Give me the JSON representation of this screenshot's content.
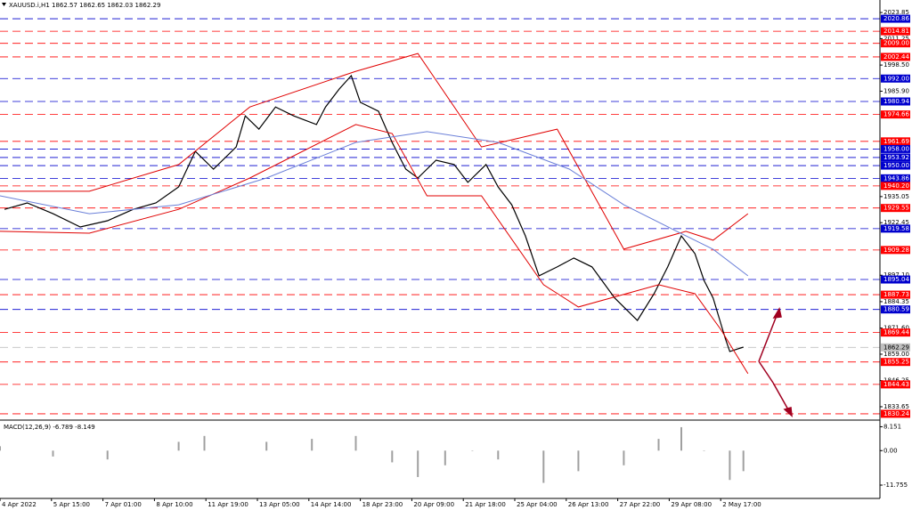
{
  "header": "XAUUSD.i,H1  1862.57 1862.65 1862.03 1862.29",
  "chart_data": [
    {
      "type": "line",
      "xlim": [
        0,
        580
      ],
      "ylim": [
        1827.2,
        2029.9
      ],
      "yticks": [
        2023.85,
        2011.25,
        {
          "value": 1998.5,
          "label": "1998.50"
        },
        {
          "value": 1985.9,
          "label": "1985.90"
        },
        1935.05,
        1922.45,
        {
          "value": 1897.1,
          "label": "1897.10"
        },
        1884.35,
        {
          "value": 1871.6,
          "label": "1871.60"
        },
        {
          "value": 1859.0,
          "label": "1859.00"
        },
        1846.25,
        1833.65
      ],
      "xticks": [
        {
          "value": 0,
          "label": "4 Apr 2022"
        },
        {
          "value": 34,
          "label": "5 Apr 15:00"
        },
        {
          "value": 68,
          "label": "7 Apr 01:00"
        },
        {
          "value": 102,
          "label": "8 Apr 10:00"
        },
        {
          "value": 136,
          "label": "11 Apr 19:00"
        },
        {
          "value": 170,
          "label": "13 Apr 05:00"
        },
        {
          "value": 204,
          "label": "14 Apr 14:00"
        },
        {
          "value": 238,
          "label": "18 Apr 23:00"
        },
        {
          "value": 272,
          "label": "20 Apr 09:00"
        },
        {
          "value": 306,
          "label": "21 Apr 18:00"
        },
        {
          "value": 340,
          "label": "25 Apr 04:00"
        },
        {
          "value": 374,
          "label": "26 Apr 13:00"
        },
        {
          "value": 408,
          "label": "27 Apr 22:00"
        },
        {
          "value": 442,
          "label": "29 Apr 08:00"
        },
        {
          "value": 476,
          "label": "2 May 17:00"
        }
      ],
      "levels": [
        {
          "value": 2020.86,
          "label": "2020.86",
          "color": "#0000cd"
        },
        {
          "value": 2014.81,
          "label": "2014.81",
          "color": "#ff0000"
        },
        {
          "value": 2009.0,
          "label": "2009.00",
          "color": "#ff0000"
        },
        {
          "value": 2002.44,
          "label": "2002.44",
          "color": "#ff0000"
        },
        {
          "value": 1992.0,
          "label": "1992.00",
          "color": "#0000cd"
        },
        {
          "value": 1980.94,
          "label": "1980.94",
          "color": "#0000cd"
        },
        {
          "value": 1974.66,
          "label": "1974.66",
          "color": "#ff0000"
        },
        {
          "value": 1961.69,
          "label": "1961.69",
          "color": "#ff0000"
        },
        {
          "value": 1958.0,
          "label": "1958.00",
          "color": "#0000cd"
        },
        {
          "value": 1953.92,
          "label": "1953.92",
          "color": "#0000cd"
        },
        {
          "value": 1950.0,
          "label": "1950.00",
          "color": "#0000cd"
        },
        {
          "value": 1943.86,
          "label": "1943.86",
          "color": "#0000cd"
        },
        {
          "value": 1940.2,
          "label": "1940.20",
          "color": "#ff0000"
        },
        {
          "value": 1929.55,
          "label": "1929.55",
          "color": "#ff0000"
        },
        {
          "value": 1919.58,
          "label": "1919.58",
          "color": "#0000cd"
        },
        {
          "value": 1909.28,
          "label": "1909.28",
          "color": "#ff0000"
        },
        {
          "value": 1895.04,
          "label": "1895.04",
          "color": "#0000cd"
        },
        {
          "value": 1887.73,
          "label": "1887.73",
          "color": "#ff0000"
        },
        {
          "value": 1880.59,
          "label": "1880.59",
          "color": "#0000cd"
        },
        {
          "value": 1869.44,
          "label": "1869.44",
          "color": "#ff0000"
        },
        {
          "value": 1862.29,
          "label": "1862.29",
          "color": "#c0c0c0"
        },
        {
          "value": 1855.25,
          "label": "1855.25",
          "color": "#ff0000"
        },
        {
          "value": 1844.43,
          "label": "1844.43",
          "color": "#ff0000"
        },
        {
          "value": 1830.24,
          "label": "1830.24",
          "color": "#ff0000"
        }
      ],
      "series": [
        {
          "color": "#000000",
          "x": [
            3,
            18,
            35,
            53,
            71,
            88,
            103,
            118,
            129,
            141,
            156,
            162,
            171,
            182,
            194,
            209,
            215,
            224,
            232,
            238,
            250,
            259,
            268,
            276,
            288,
            300,
            309,
            321,
            329,
            338,
            347,
            356,
            368,
            379,
            391,
            406,
            421,
            432,
            441,
            450,
            459,
            465,
            471,
            479,
            482,
            491
          ],
          "values": [
            1928.9,
            1932.0,
            1926.8,
            1920.4,
            1923.4,
            1928.9,
            1932.0,
            1939.7,
            1956.9,
            1948.3,
            1959.0,
            1974.0,
            1967.6,
            1978.3,
            1974.0,
            1969.8,
            1978.3,
            1986.9,
            1993.4,
            1980.5,
            1976.2,
            1961.2,
            1948.3,
            1944.0,
            1952.6,
            1950.5,
            1941.9,
            1950.5,
            1939.7,
            1931.1,
            1916.1,
            1896.8,
            1901.1,
            1905.4,
            1901.1,
            1886.1,
            1875.3,
            1888.2,
            1901.1,
            1916.1,
            1907.5,
            1894.6,
            1886.1,
            1866.7,
            1860.3,
            1862.4
          ]
        },
        {
          "color": "#e00000",
          "x": [
            0,
            59,
            118,
            165,
            235,
            276,
            318,
            368,
            412,
            453,
            471,
            494
          ],
          "values": [
            1937.6,
            1937.6,
            1950.5,
            1978.3,
            1995.5,
            2004.1,
            1959.0,
            1967.6,
            1909.7,
            1918.3,
            1914.0,
            1926.8
          ]
        },
        {
          "color": "#e00000",
          "x": [
            0,
            59,
            118,
            165,
            235,
            259,
            282,
            318,
            359,
            382,
            435,
            459,
            476,
            494
          ],
          "values": [
            1918.3,
            1917.4,
            1928.9,
            1944.0,
            1969.8,
            1965.5,
            1935.4,
            1935.4,
            1892.5,
            1881.8,
            1892.5,
            1888.2,
            1871.0,
            1849.6
          ]
        },
        {
          "color": "#6a7fd8",
          "x": [
            0,
            59,
            118,
            176,
            235,
            282,
            329,
            376,
            412,
            447,
            471,
            494
          ],
          "values": [
            1935.4,
            1926.8,
            1931.1,
            1944.0,
            1961.2,
            1966.4,
            1961.2,
            1948.3,
            1931.1,
            1918.3,
            1909.6,
            1896.8
          ]
        }
      ]
    },
    {
      "type": "bar",
      "title": "MACD(12,26,9) -6.789 -8.149",
      "xlim": [
        0,
        580
      ],
      "ylim": [
        -16.3,
        9.5
      ],
      "yticks": [
        8.151,
        {
          "value": 0,
          "label": "0.00"
        },
        -11.755
      ],
      "color": "#a0a0a0",
      "x": [
        0,
        35,
        71,
        118,
        135,
        176,
        206,
        235,
        259,
        276,
        294,
        312,
        329,
        359,
        382,
        412,
        435,
        450,
        465,
        482,
        491
      ],
      "values": [
        1.5,
        -2,
        -3,
        3,
        5,
        3,
        4,
        5,
        -4,
        -9,
        -5,
        0,
        -3,
        -11,
        -7,
        -5,
        4,
        8,
        0,
        -10,
        -7
      ]
    }
  ]
}
